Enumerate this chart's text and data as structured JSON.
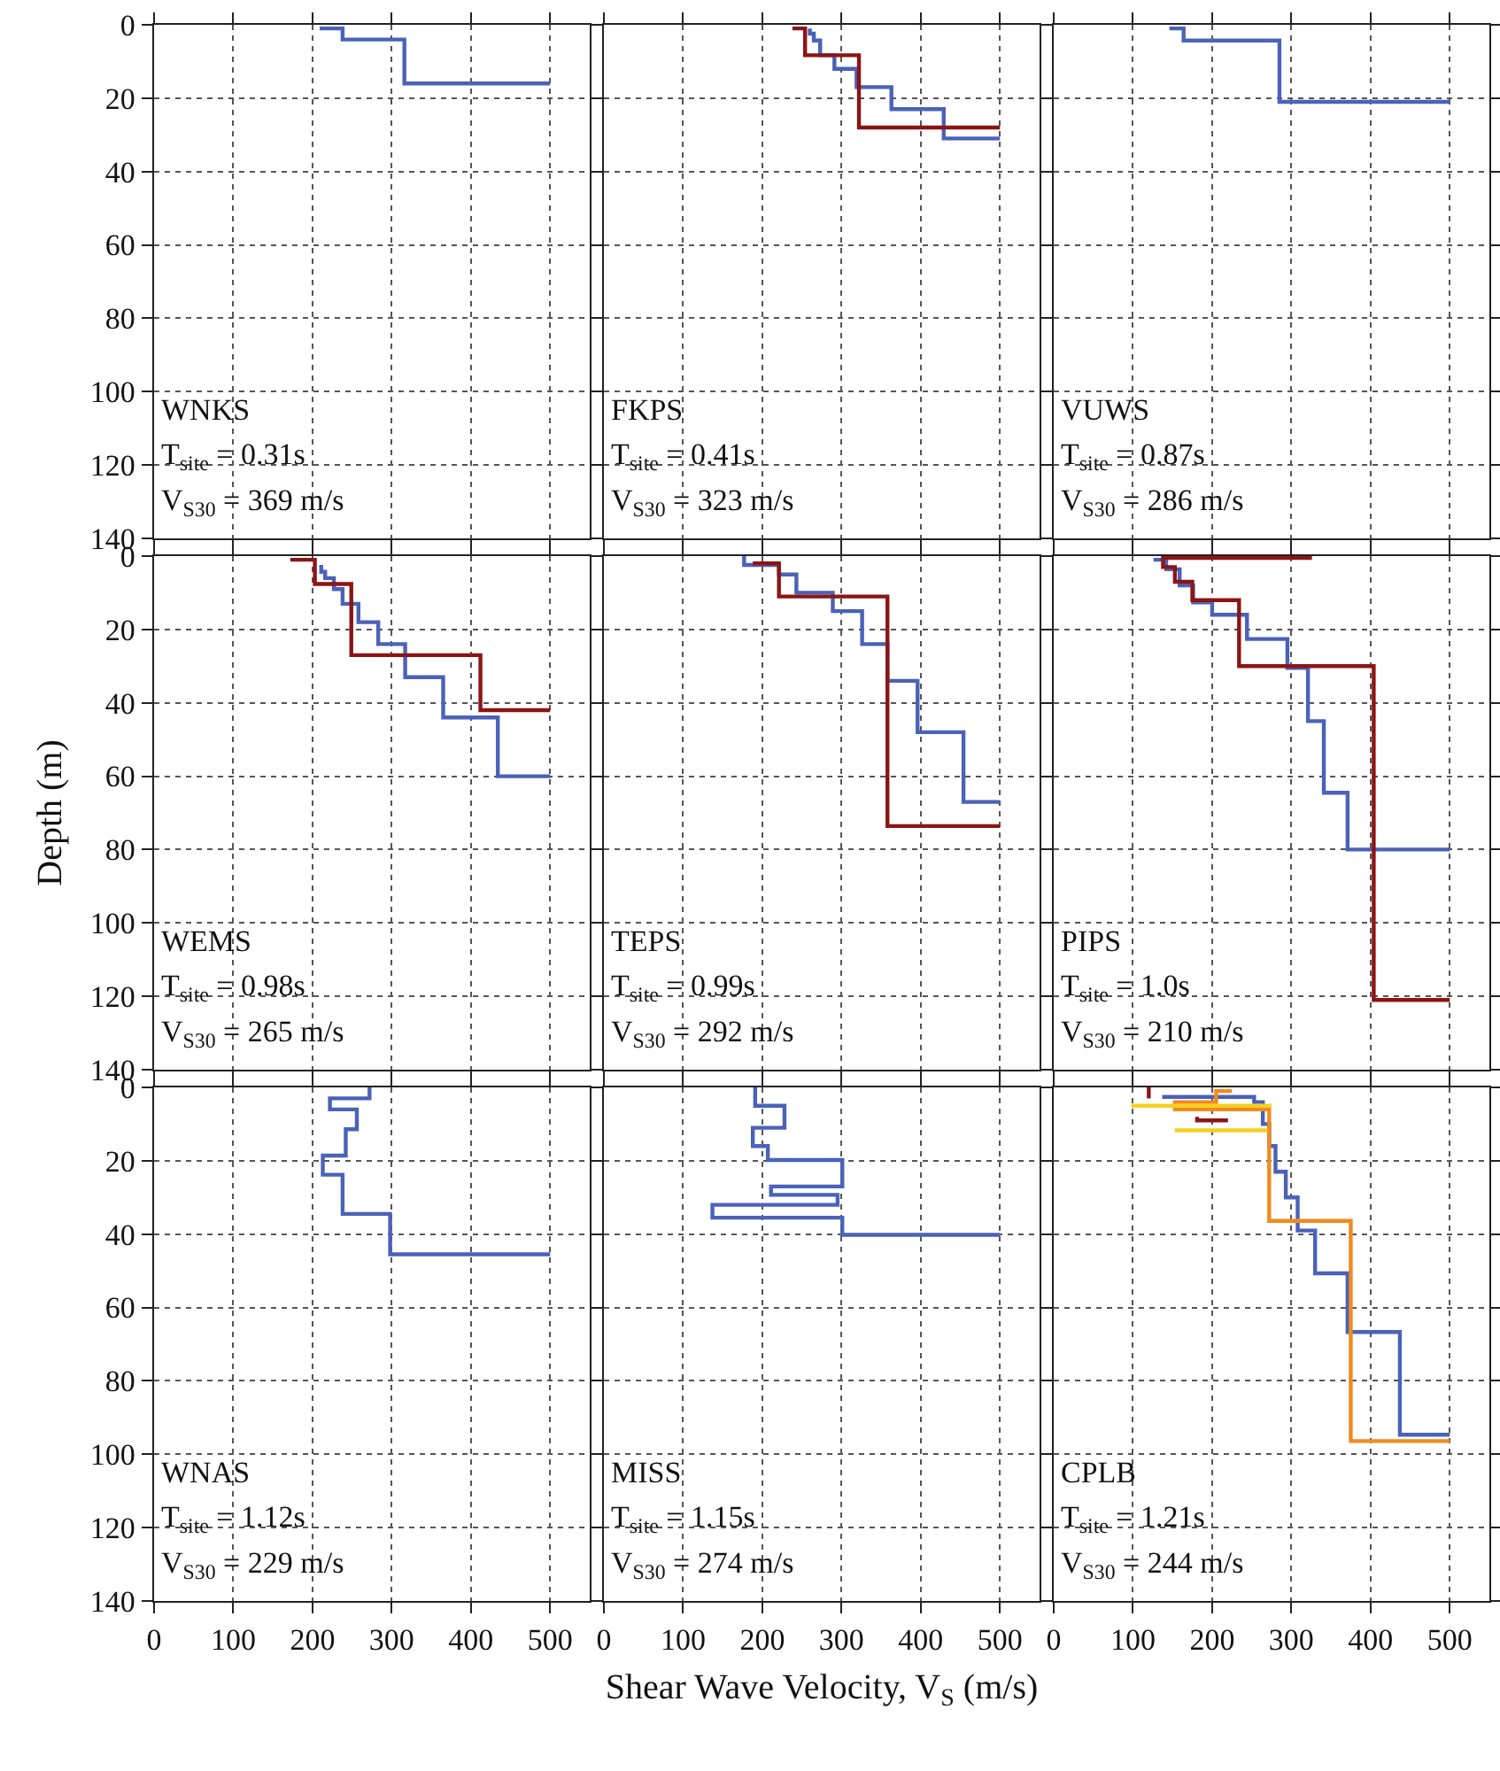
{
  "chart_data": [
    {
      "type": "line",
      "xlim": [
        0,
        550
      ],
      "xticks": [
        0,
        100,
        200,
        300,
        400,
        500
      ],
      "ylim": [
        140,
        0
      ],
      "yticks": [
        0,
        20,
        40,
        60,
        80,
        100,
        120,
        140
      ],
      "grid": true,
      "tick_labels": "y",
      "annotations": [
        "WNKS",
        "T$_{site}$ = 0.31s",
        "V$_{S30}$ = 369 m/s"
      ],
      "series": [
        {
          "color": "#4a62b8",
          "x": [
            209,
            238,
            238,
            316,
            316,
            500
          ],
          "values": [
            1,
            1,
            4,
            4,
            16,
            16
          ]
        }
      ]
    },
    {
      "type": "line",
      "xlim": [
        0,
        550
      ],
      "xticks": [
        0,
        100,
        200,
        300,
        400,
        500
      ],
      "ylim": [
        140,
        0
      ],
      "yticks": [
        0,
        20,
        40,
        60,
        80,
        100,
        120,
        140
      ],
      "grid": true,
      "tick_labels": false,
      "annotations": [
        "FKPS",
        "T$_{site}$ = 0.41s",
        "V$_{S30}$ = 323 m/s"
      ],
      "series": [
        {
          "color": "#4a62b8",
          "x": [
            260,
            260,
            265,
            265,
            273,
            273,
            291,
            291,
            319,
            319,
            363,
            363,
            429,
            429,
            500
          ],
          "values": [
            1,
            2.4,
            2.4,
            4.3,
            4.3,
            8.3,
            8.3,
            12,
            12,
            17,
            17,
            23,
            23,
            31,
            31
          ]
        },
        {
          "color": "#8b1515",
          "x": [
            238,
            254,
            254,
            322,
            322,
            500
          ],
          "values": [
            1,
            1,
            8.3,
            8.3,
            28,
            28
          ]
        }
      ]
    },
    {
      "type": "line",
      "xlim": [
        0,
        550
      ],
      "xticks": [
        0,
        100,
        200,
        300,
        400,
        500
      ],
      "ylim": [
        140,
        0
      ],
      "yticks": [
        0,
        20,
        40,
        60,
        80,
        100,
        120,
        140
      ],
      "grid": true,
      "tick_labels": false,
      "annotations": [
        "VUWS",
        "T$_{site}$ = 0.87s",
        "V$_{S30}$ = 286 m/s"
      ],
      "series": [
        {
          "color": "#4a62b8",
          "x": [
            146,
            164,
            164,
            285,
            285,
            500
          ],
          "values": [
            1,
            1,
            4.3,
            4.3,
            21,
            21
          ]
        }
      ]
    },
    {
      "type": "line",
      "xlim": [
        0,
        550
      ],
      "xticks": [
        0,
        100,
        200,
        300,
        400,
        500
      ],
      "ylim": [
        140,
        0
      ],
      "yticks": [
        0,
        20,
        40,
        60,
        80,
        100,
        120,
        140
      ],
      "grid": true,
      "tick_labels": "y",
      "ylabel": "Depth (m)",
      "annotations": [
        "WEMS",
        "T$_{site}$ = 0.98s",
        "V$_{S30}$ = 265 m/s"
      ],
      "series": [
        {
          "color": "#4a62b8",
          "x": [
            211,
            211,
            216,
            216,
            227,
            227,
            238,
            238,
            258,
            258,
            283,
            283,
            317,
            317,
            365,
            365,
            434,
            434,
            500
          ],
          "values": [
            2.4,
            4.3,
            4.3,
            6,
            6,
            9,
            9,
            13,
            13,
            18,
            18,
            24,
            24,
            33,
            33,
            44,
            44,
            60,
            60
          ]
        },
        {
          "color": "#8b1515",
          "x": [
            172,
            203,
            203,
            249,
            249,
            412,
            412,
            500
          ],
          "values": [
            1,
            1,
            7.6,
            7.6,
            27,
            27,
            42,
            42
          ]
        }
      ]
    },
    {
      "type": "line",
      "xlim": [
        0,
        550
      ],
      "xticks": [
        0,
        100,
        200,
        300,
        400,
        500
      ],
      "ylim": [
        140,
        0
      ],
      "yticks": [
        0,
        20,
        40,
        60,
        80,
        100,
        120,
        140
      ],
      "grid": true,
      "tick_labels": false,
      "annotations": [
        "TEPS",
        "T$_{site}$ = 0.99s",
        "V$_{S30}$ = 292 m/s"
      ],
      "series": [
        {
          "color": "#4a62b8",
          "x": [
            177,
            177,
            221,
            221,
            243,
            243,
            289,
            289,
            326,
            326,
            358,
            358,
            396,
            396,
            454,
            454,
            500
          ],
          "values": [
            0,
            2.4,
            2.4,
            5,
            5,
            10,
            10,
            15,
            15,
            24,
            24,
            34,
            34,
            48,
            48,
            67,
            67
          ]
        },
        {
          "color": "#8b1515",
          "x": [
            188,
            221,
            221,
            358,
            358,
            500
          ],
          "values": [
            2,
            2,
            11,
            11,
            73.6,
            73.6
          ]
        }
      ]
    },
    {
      "type": "line",
      "xlim": [
        0,
        550
      ],
      "xticks": [
        0,
        100,
        200,
        300,
        400,
        500
      ],
      "ylim": [
        140,
        0
      ],
      "yticks": [
        0,
        20,
        40,
        60,
        80,
        100,
        120,
        140
      ],
      "grid": true,
      "tick_labels": false,
      "annotations": [
        "PIPS",
        "T$_{site}$ = 1.0s",
        "V$_{S30}$ = 210 m/s"
      ],
      "series": [
        {
          "color": "#4a62b8",
          "x": [
            126,
            142,
            142,
            159,
            159,
            176,
            176,
            200,
            200,
            244,
            244,
            295,
            295,
            321,
            321,
            341,
            341,
            371,
            371,
            500
          ],
          "values": [
            1,
            1,
            3.6,
            3.6,
            8,
            8,
            12.6,
            12.6,
            16,
            16,
            22.6,
            22.6,
            30.5,
            30.5,
            45,
            45,
            64.5,
            64.5,
            80,
            80
          ]
        },
        {
          "color": "#8b1515",
          "x": [
            326,
            138,
            138,
            153,
            153,
            175,
            175,
            234,
            234,
            404,
            404,
            500
          ],
          "values": [
            0.5,
            0.5,
            3,
            3,
            7,
            7,
            12,
            12,
            30,
            30,
            121,
            121
          ]
        }
      ]
    },
    {
      "type": "line",
      "xlim": [
        0,
        550
      ],
      "xticks": [
        0,
        100,
        200,
        300,
        400,
        500
      ],
      "ylim": [
        140,
        0
      ],
      "yticks": [
        0,
        20,
        40,
        60,
        80,
        100,
        120,
        140
      ],
      "grid": true,
      "annotations": [
        "WNAS",
        "T$_{site}$ = 1.12s",
        "V$_{S30}$ = 229 m/s"
      ],
      "series": [
        {
          "color": "#4a62b8",
          "x": [
            272,
            272,
            222,
            222,
            256,
            256,
            242,
            242,
            213,
            213,
            238,
            238,
            298,
            298,
            500
          ],
          "values": [
            0,
            3,
            3,
            6,
            6,
            11.4,
            11.4,
            18.6,
            18.6,
            23.8,
            23.8,
            34.5,
            34.5,
            45.5,
            45.5
          ]
        }
      ]
    },
    {
      "type": "line",
      "xlim": [
        0,
        550
      ],
      "xticks": [
        0,
        100,
        200,
        300,
        400,
        500
      ],
      "ylim": [
        140,
        0
      ],
      "yticks": [
        0,
        20,
        40,
        60,
        80,
        100,
        120,
        140
      ],
      "grid": true,
      "tick_labels": "x",
      "xlabel": "Shear Wave Velocity, V$_{S}$ (m/s)",
      "annotations": [
        "MISS",
        "T$_{site}$ = 1.15s",
        "V$_{S30}$ = 274 m/s"
      ],
      "series": [
        {
          "color": "#4a62b8",
          "x": [
            191,
            191,
            228,
            228,
            188,
            188,
            207,
            207,
            301,
            301,
            211,
            211,
            295,
            295,
            137,
            137,
            301,
            301,
            500
          ],
          "values": [
            0,
            5,
            5,
            11,
            11,
            16,
            16,
            19.8,
            19.8,
            27,
            27,
            29.3,
            29.3,
            32,
            32,
            35.5,
            35.5,
            40.2,
            40.2
          ]
        }
      ]
    },
    {
      "type": "line",
      "xlim": [
        0,
        550
      ],
      "xticks": [
        0,
        100,
        200,
        300,
        400,
        500
      ],
      "ylim": [
        140,
        0
      ],
      "yticks": [
        0,
        20,
        40,
        60,
        80,
        100,
        120,
        140
      ],
      "grid": true,
      "tick_labels": "x",
      "annotations": [
        "CPLB",
        "T$_{site}$ = 1.21s",
        "V$_{S30}$ = 244 m/s"
      ],
      "series": [
        {
          "color": "#4a62b8",
          "x": [
            137,
            253,
            253,
            264,
            264,
            272,
            272,
            280,
            280,
            293,
            293,
            308,
            308,
            330,
            330,
            371,
            371,
            437,
            437,
            500
          ],
          "values": [
            2.6,
            2.6,
            4,
            4,
            10,
            10,
            16,
            16,
            23,
            23,
            30,
            30,
            39,
            39,
            50.7,
            50.7,
            66.7,
            66.7,
            94.7,
            94.7
          ]
        },
        {
          "color": "#8b1515",
          "x": [
            120,
            120,
            null,
            181,
            181,
            220
          ],
          "values": [
            0,
            3,
            null,
            8,
            9,
            9
          ]
        },
        {
          "color": "#f28a1e",
          "x": [
            225,
            205,
            205,
            153,
            153,
            272,
            272,
            375,
            375,
            500
          ],
          "values": [
            1,
            1,
            4,
            4,
            6,
            6,
            36.4,
            36.4,
            96.4,
            96.4
          ]
        },
        {
          "color": "#f5d020",
          "x": [
            98,
            275,
            null,
            153,
            270
          ],
          "values": [
            5,
            5,
            null,
            11.7,
            11.7
          ]
        }
      ]
    }
  ]
}
